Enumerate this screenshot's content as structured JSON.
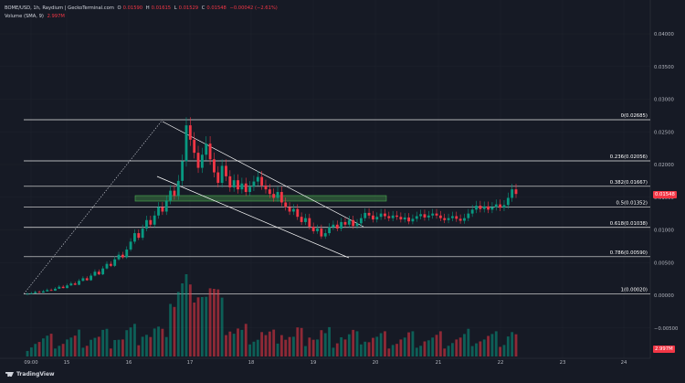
{
  "legend": {
    "symbol": "BOME/USD, 1h, Raydium | GeckoTerminal.com",
    "open_label": "O",
    "open": "0.01590",
    "high_label": "H",
    "high": "0.01615",
    "low_label": "L",
    "low": "0.01529",
    "close_label": "C",
    "close": "0.01548",
    "change": "−0.00042 (−2.61%)",
    "volume_label": "Volume (SMA, 9)",
    "volume_value": "2.997M"
  },
  "price_axis": [
    "0.04000",
    "0.03500",
    "0.03000",
    "0.02500",
    "0.02000",
    "0.01500",
    "0.01000",
    "0.00500",
    "0.00000",
    "−0.00500"
  ],
  "time_axis": [
    "09:00",
    "15",
    "16",
    "17",
    "18",
    "19",
    "20",
    "21",
    "22",
    "23",
    "24"
  ],
  "current_price_tag": "0.01548",
  "volume_tag": "2.997M",
  "fib_levels": [
    {
      "label": "0(0.02685)",
      "price": 0.02685
    },
    {
      "label": "0.236(0.02056)",
      "price": 0.02056
    },
    {
      "label": "0.382(0.01667)",
      "price": 0.01667
    },
    {
      "label": "0.5(0.01352)",
      "price": 0.01352
    },
    {
      "label": "0.618(0.01038)",
      "price": 0.01038
    },
    {
      "label": "0.786(0.00590)",
      "price": 0.0059
    },
    {
      "label": "1(0.00020)",
      "price": 0.0002
    }
  ],
  "branding": "TradingView",
  "colors": {
    "up": "#089981",
    "down": "#f23645",
    "bg": "#161a25",
    "grid": "#1e222d",
    "fib": "#e8e8e8",
    "zone": "#4caf50"
  },
  "chart_data": {
    "type": "candlestick",
    "ylim": [
      -0.006,
      0.042
    ],
    "x_ticks": [
      "09:00",
      "15",
      "16",
      "17",
      "18",
      "19",
      "20",
      "21",
      "22",
      "23",
      "24"
    ],
    "closes": [
      0.0002,
      0.0003,
      0.0005,
      0.0004,
      0.0006,
      0.0008,
      0.0007,
      0.001,
      0.0013,
      0.0011,
      0.0015,
      0.0018,
      0.0016,
      0.0022,
      0.0026,
      0.0023,
      0.003,
      0.0036,
      0.0032,
      0.0041,
      0.0048,
      0.0045,
      0.0055,
      0.0062,
      0.0058,
      0.007,
      0.0082,
      0.0095,
      0.0088,
      0.0102,
      0.0115,
      0.0108,
      0.0122,
      0.0135,
      0.0128,
      0.0145,
      0.016,
      0.0152,
      0.0175,
      0.0205,
      0.026,
      0.0238,
      0.0218,
      0.0195,
      0.0215,
      0.0232,
      0.0208,
      0.0188,
      0.0172,
      0.0198,
      0.0182,
      0.0165,
      0.0176,
      0.0162,
      0.0171,
      0.0158,
      0.0166,
      0.0174,
      0.0181,
      0.0168,
      0.0162,
      0.0155,
      0.0149,
      0.0158,
      0.0142,
      0.0135,
      0.0128,
      0.0132,
      0.012,
      0.0112,
      0.0118,
      0.0105,
      0.0098,
      0.0102,
      0.009,
      0.0095,
      0.0104,
      0.0108,
      0.0102,
      0.0112,
      0.0108,
      0.0115,
      0.0106,
      0.011,
      0.0118,
      0.0126,
      0.0122,
      0.0116,
      0.012,
      0.0125,
      0.0121,
      0.0118,
      0.0122,
      0.012,
      0.0116,
      0.0119,
      0.0113,
      0.0117,
      0.0121,
      0.0124,
      0.0119,
      0.0122,
      0.0125,
      0.0122,
      0.0118,
      0.0115,
      0.0118,
      0.0121,
      0.0117,
      0.0114,
      0.0118,
      0.0125,
      0.0131,
      0.0137,
      0.0132,
      0.0136,
      0.0131,
      0.0135,
      0.0139,
      0.0134,
      0.0138,
      0.0149,
      0.0162,
      0.0155
    ]
  }
}
